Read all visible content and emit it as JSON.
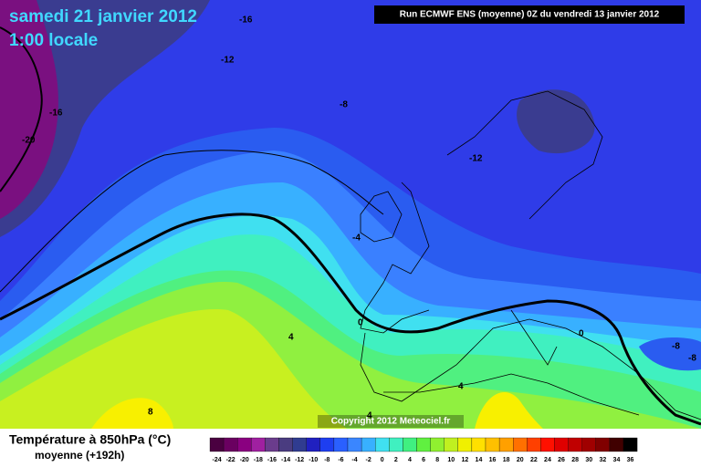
{
  "header": {
    "date": "samedi 21 janvier 2012",
    "time": "1:00 locale",
    "run": "Run ECMWF ENS (moyenne) 0Z du vendredi 13 janvier 2012"
  },
  "contour_labels": [
    "-16",
    "-12",
    "-16",
    "-20",
    "-8",
    "-12",
    "-4",
    "0",
    "4",
    "0",
    "-8",
    "-8",
    "4",
    "4",
    "8"
  ],
  "copyright": "Copyright 2012 Meteociel.fr",
  "footer": {
    "title": "Température à 850hPa (°C)",
    "subtitle": "moyenne  (+192h)"
  },
  "legend": {
    "labels": [
      "-24",
      "-22",
      "-20",
      "-18",
      "-16",
      "-14",
      "-12",
      "-10",
      "-8",
      "-6",
      "-4",
      "-2",
      "0",
      "2",
      "4",
      "6",
      "8",
      "10",
      "12",
      "14",
      "16",
      "18",
      "20",
      "22",
      "24",
      "26",
      "28",
      "30",
      "32",
      "34",
      "36"
    ],
    "colors": [
      "#4a0040",
      "#6a0060",
      "#8a0080",
      "#a020a0",
      "#6a3c8c",
      "#4a3c80",
      "#303c90",
      "#2020c0",
      "#1e3ef0",
      "#2a60ff",
      "#3a86ff",
      "#38b0ff",
      "#40e0f0",
      "#40f0c0",
      "#40f080",
      "#60f040",
      "#90f030",
      "#c0f020",
      "#f0f000",
      "#ffe000",
      "#ffc000",
      "#ffa000",
      "#ff7000",
      "#ff4000",
      "#ff1000",
      "#e00000",
      "#c00000",
      "#a00000",
      "#800000",
      "#400000",
      "#000000"
    ]
  }
}
